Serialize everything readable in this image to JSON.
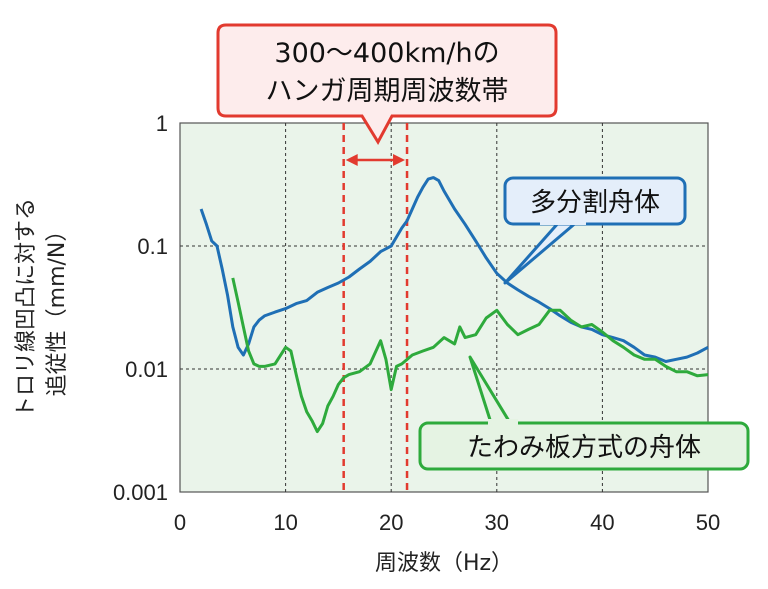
{
  "chart_data": {
    "type": "line",
    "title": "",
    "xlabel": "周波数（Hz）",
    "ylabel": [
      "トロリ線凹凸に対する",
      "追従性（mm/N）"
    ],
    "xlim": [
      0,
      50
    ],
    "ylim": [
      0.001,
      1
    ],
    "yscale": "log",
    "grid": true,
    "xticks": [
      0,
      10,
      20,
      30,
      40,
      50
    ],
    "xtick_labels": [
      "0",
      "10",
      "20",
      "30",
      "40",
      "50"
    ],
    "yticks": [
      0.001,
      0.01,
      0.1,
      1
    ],
    "ytick_labels": [
      "0.001",
      "0.01",
      "0.1",
      "1"
    ],
    "series": [
      {
        "name": "多分割舟体",
        "color": "#1f6fb5",
        "x": [
          2,
          2.5,
          3,
          3.5,
          4,
          4.5,
          5,
          5.5,
          6,
          6.5,
          7,
          7.5,
          8,
          9,
          10,
          11,
          12,
          13,
          14,
          15,
          16,
          17,
          18,
          19,
          20,
          21,
          21.5,
          22,
          22.5,
          23,
          23.5,
          24,
          24.5,
          25,
          26,
          27,
          28,
          29,
          30,
          31,
          32,
          33,
          34,
          35,
          36,
          37,
          38,
          39,
          40,
          41,
          42,
          43,
          44,
          45,
          46,
          47,
          48,
          49,
          50
        ],
        "y": [
          0.2,
          0.15,
          0.11,
          0.1,
          0.065,
          0.04,
          0.022,
          0.015,
          0.013,
          0.016,
          0.022,
          0.025,
          0.027,
          0.029,
          0.031,
          0.034,
          0.036,
          0.042,
          0.046,
          0.05,
          0.056,
          0.065,
          0.075,
          0.09,
          0.1,
          0.14,
          0.16,
          0.2,
          0.25,
          0.3,
          0.35,
          0.36,
          0.34,
          0.28,
          0.2,
          0.15,
          0.11,
          0.08,
          0.06,
          0.05,
          0.044,
          0.039,
          0.035,
          0.031,
          0.027,
          0.024,
          0.022,
          0.021,
          0.019,
          0.018,
          0.017,
          0.015,
          0.013,
          0.0125,
          0.0115,
          0.012,
          0.0125,
          0.0135,
          0.015
        ]
      },
      {
        "name": "たわみ板方式の舟体",
        "color": "#2eaa3c",
        "x": [
          5,
          5.5,
          6,
          6.5,
          7,
          7.5,
          8,
          9,
          10,
          10.5,
          11,
          11.5,
          12,
          12.5,
          13,
          13.5,
          14,
          14.5,
          15,
          15.5,
          16,
          17,
          18,
          19,
          19.5,
          20,
          20.5,
          21,
          22,
          23,
          24,
          25,
          26,
          26.5,
          27,
          28,
          29,
          30,
          31,
          32,
          33,
          34,
          35,
          36,
          37,
          38,
          39,
          40,
          41,
          42,
          43,
          44,
          45,
          46,
          47,
          48,
          49,
          50
        ],
        "y": [
          0.055,
          0.035,
          0.022,
          0.014,
          0.011,
          0.0105,
          0.0105,
          0.011,
          0.015,
          0.014,
          0.009,
          0.006,
          0.0045,
          0.0038,
          0.0031,
          0.0036,
          0.005,
          0.006,
          0.0075,
          0.0085,
          0.009,
          0.0095,
          0.011,
          0.017,
          0.012,
          0.0068,
          0.0105,
          0.011,
          0.013,
          0.014,
          0.015,
          0.018,
          0.016,
          0.022,
          0.018,
          0.019,
          0.026,
          0.03,
          0.023,
          0.019,
          0.021,
          0.023,
          0.03,
          0.03,
          0.025,
          0.022,
          0.023,
          0.02,
          0.017,
          0.015,
          0.013,
          0.012,
          0.012,
          0.0105,
          0.0095,
          0.0095,
          0.0088,
          0.009
        ]
      }
    ],
    "band": {
      "label_line1": "300〜400km/hの",
      "label_line2": "ハンガ周期周波数帯",
      "x_from": 15.5,
      "x_to": 21.5,
      "color": "#e23a2f"
    },
    "annotations": [
      {
        "text": "多分割舟体",
        "series": 0
      },
      {
        "text": "たわみ板方式の舟体",
        "series": 1
      }
    ]
  }
}
